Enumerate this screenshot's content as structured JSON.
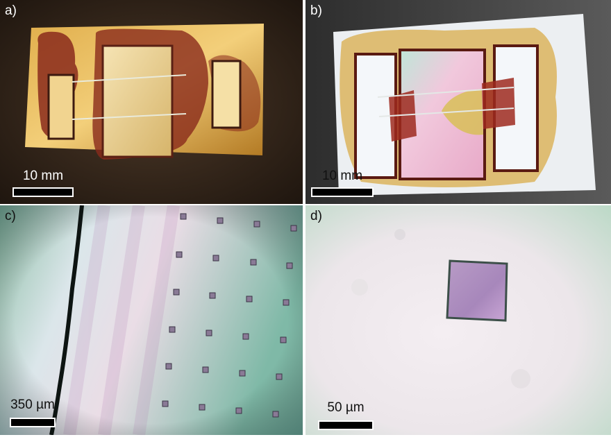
{
  "figure": {
    "panels": [
      {
        "label": "a)",
        "scale_text": "10 mm"
      },
      {
        "label": "b)",
        "scale_text": "10 mm"
      },
      {
        "label": "c)",
        "scale_text": "350 µm"
      },
      {
        "label": "d)",
        "scale_text": "50 µm"
      }
    ]
  },
  "colors": {
    "gold": "#c8952e",
    "resin": "#8a2a1c",
    "stage_dark": "#3a2a1e",
    "micro_green": "#9fd3b8",
    "micro_pink": "#e6d9ea",
    "sample_purple": "#a48ab8"
  }
}
